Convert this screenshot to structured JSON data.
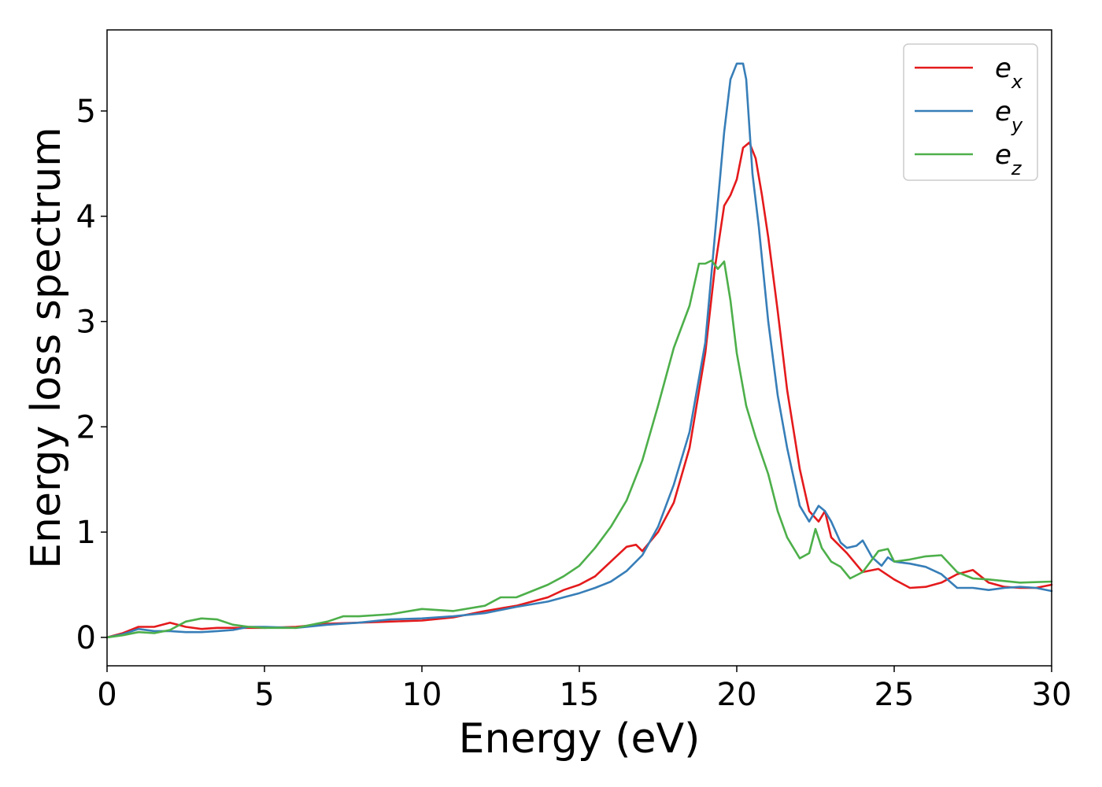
{
  "chart_data": {
    "type": "line",
    "title": "",
    "xlabel": "Energy (eV)",
    "ylabel": "Energy loss spectrum",
    "xlim": [
      0,
      30
    ],
    "ylim": [
      -0.27,
      5.77
    ],
    "xticks": [
      0,
      5,
      10,
      15,
      20,
      25,
      30
    ],
    "yticks": [
      0,
      1,
      2,
      3,
      4,
      5
    ],
    "grid": false,
    "legend_position": "top-right",
    "series": [
      {
        "name": "e_x",
        "label_base": "e",
        "label_sub": "x",
        "color": "#e41a1c",
        "x": [
          0,
          0.5,
          1,
          1.5,
          2,
          2.5,
          3,
          3.5,
          4,
          5,
          6,
          7,
          8,
          9,
          10,
          11,
          12,
          13,
          14,
          14.5,
          15,
          15.5,
          16,
          16.5,
          16.8,
          17,
          17.5,
          18,
          18.5,
          19,
          19.3,
          19.6,
          19.8,
          20,
          20.2,
          20.4,
          20.6,
          20.8,
          21,
          21.3,
          21.6,
          22,
          22.3,
          22.6,
          22.8,
          23,
          23.5,
          24,
          24.5,
          25,
          25.5,
          26,
          26.5,
          27,
          27.5,
          28,
          28.5,
          29,
          29.5,
          30
        ],
        "y": [
          0,
          0.04,
          0.1,
          0.1,
          0.14,
          0.1,
          0.08,
          0.09,
          0.09,
          0.09,
          0.1,
          0.13,
          0.14,
          0.15,
          0.16,
          0.19,
          0.25,
          0.3,
          0.38,
          0.45,
          0.5,
          0.58,
          0.72,
          0.86,
          0.88,
          0.82,
          1.0,
          1.28,
          1.8,
          2.7,
          3.5,
          4.1,
          4.2,
          4.35,
          4.65,
          4.7,
          4.55,
          4.2,
          3.8,
          3.1,
          2.35,
          1.6,
          1.2,
          1.1,
          1.2,
          0.95,
          0.8,
          0.62,
          0.65,
          0.55,
          0.47,
          0.48,
          0.52,
          0.6,
          0.64,
          0.52,
          0.48,
          0.47,
          0.47,
          0.5
        ]
      },
      {
        "name": "e_y",
        "label_base": "e",
        "label_sub": "y",
        "color": "#377eb8",
        "x": [
          0,
          0.5,
          1,
          1.5,
          2,
          2.5,
          3,
          3.5,
          4,
          4.5,
          5,
          6,
          7,
          8,
          9,
          10,
          11,
          12,
          13,
          14,
          14.5,
          15,
          15.5,
          16,
          16.5,
          17,
          17.5,
          18,
          18.5,
          19,
          19.3,
          19.6,
          19.8,
          20,
          20.2,
          20.3,
          20.5,
          20.7,
          21,
          21.3,
          21.6,
          22,
          22.3,
          22.6,
          22.8,
          23,
          23.3,
          23.5,
          23.8,
          24,
          24.3,
          24.6,
          24.8,
          25,
          25.5,
          26,
          26.5,
          27,
          27.5,
          28,
          28.5,
          29,
          29.5,
          30
        ],
        "y": [
          0,
          0.03,
          0.08,
          0.06,
          0.06,
          0.05,
          0.05,
          0.06,
          0.07,
          0.1,
          0.1,
          0.09,
          0.12,
          0.14,
          0.17,
          0.18,
          0.2,
          0.23,
          0.29,
          0.34,
          0.38,
          0.42,
          0.47,
          0.53,
          0.63,
          0.78,
          1.05,
          1.45,
          1.95,
          2.8,
          3.8,
          4.8,
          5.3,
          5.45,
          5.45,
          5.3,
          4.4,
          3.9,
          3.0,
          2.3,
          1.8,
          1.25,
          1.1,
          1.25,
          1.2,
          1.1,
          0.9,
          0.85,
          0.87,
          0.92,
          0.76,
          0.68,
          0.76,
          0.72,
          0.7,
          0.67,
          0.6,
          0.47,
          0.47,
          0.45,
          0.47,
          0.48,
          0.47,
          0.44
        ]
      },
      {
        "name": "e_z",
        "label_base": "e",
        "label_sub": "z",
        "color": "#4daf4a",
        "x": [
          0,
          0.5,
          1,
          1.5,
          2,
          2.5,
          3,
          3.5,
          4,
          4.5,
          5,
          6,
          7,
          7.5,
          8,
          9,
          10,
          11,
          12,
          12.5,
          13,
          14,
          14.5,
          15,
          15.5,
          16,
          16.5,
          17,
          17.5,
          18,
          18.5,
          18.8,
          19,
          19.2,
          19.4,
          19.6,
          19.8,
          20,
          20.3,
          20.6,
          21,
          21.3,
          21.6,
          22,
          22.3,
          22.5,
          22.7,
          23,
          23.3,
          23.6,
          24,
          24.5,
          24.8,
          25,
          25.5,
          26,
          26.5,
          27,
          27.5,
          28,
          29,
          30
        ],
        "y": [
          0,
          0.02,
          0.05,
          0.04,
          0.07,
          0.15,
          0.18,
          0.17,
          0.12,
          0.1,
          0.09,
          0.09,
          0.15,
          0.2,
          0.2,
          0.22,
          0.27,
          0.25,
          0.3,
          0.38,
          0.38,
          0.5,
          0.58,
          0.68,
          0.85,
          1.05,
          1.3,
          1.68,
          2.2,
          2.75,
          3.15,
          3.55,
          3.55,
          3.58,
          3.5,
          3.57,
          3.2,
          2.7,
          2.2,
          1.9,
          1.55,
          1.2,
          0.95,
          0.75,
          0.8,
          1.03,
          0.85,
          0.72,
          0.67,
          0.56,
          0.62,
          0.82,
          0.84,
          0.72,
          0.74,
          0.77,
          0.78,
          0.62,
          0.56,
          0.55,
          0.52,
          0.53
        ]
      }
    ]
  }
}
